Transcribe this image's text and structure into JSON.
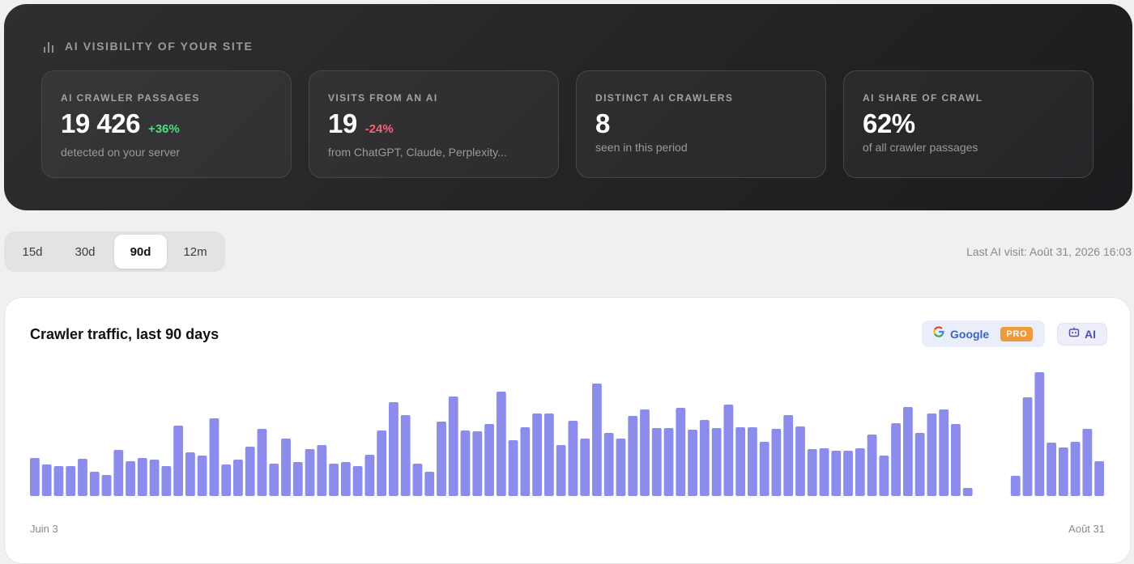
{
  "hero": {
    "title": "AI VISIBILITY OF YOUR SITE",
    "icon": "bar-chart-icon",
    "cards": [
      {
        "label": "AI CRAWLER PASSAGES",
        "value": "19 426",
        "delta": "+36%",
        "delta_dir": "up",
        "sub": "detected on your server"
      },
      {
        "label": "VISITS FROM AN AI",
        "value": "19",
        "delta": "-24%",
        "delta_dir": "down",
        "sub": "from ChatGPT, Claude, Perplexity..."
      },
      {
        "label": "DISTINCT AI CRAWLERS",
        "value": "8",
        "delta": "",
        "sub": "seen in this period"
      },
      {
        "label": "AI SHARE OF CRAWL",
        "value": "62%",
        "delta": "",
        "sub": "of all crawler passages"
      }
    ]
  },
  "range": {
    "tabs": [
      "15d",
      "30d",
      "90d",
      "12m"
    ],
    "active": "90d"
  },
  "last_visit": "Last AI visit: Août 31, 2026 16:03",
  "chart": {
    "title": "Crawler traffic, last 90 days",
    "google_label": "Google",
    "pro_badge": "PRO",
    "ai_label": "AI",
    "bar_color": "#8b8cec"
  },
  "chart_data": {
    "type": "bar",
    "x_start_label": "Juin 3",
    "x_end_label": "Août 31",
    "ylim": [
      0,
      150
    ],
    "values": [
      47,
      39,
      37,
      37,
      46,
      30,
      26,
      57,
      43,
      47,
      45,
      37,
      87,
      54,
      50,
      96,
      39,
      45,
      61,
      83,
      40,
      71,
      42,
      58,
      63,
      40,
      42,
      37,
      51,
      81,
      116,
      100,
      40,
      30,
      92,
      123,
      81,
      80,
      89,
      129,
      69,
      85,
      102,
      102,
      63,
      93,
      71,
      139,
      78,
      71,
      99,
      107,
      84,
      84,
      109,
      82,
      94,
      84,
      113,
      85,
      85,
      67,
      83,
      100,
      86,
      58,
      59,
      56,
      56,
      59,
      76,
      50,
      90,
      110,
      78,
      102,
      107,
      89,
      10,
      0,
      0,
      0,
      25,
      122,
      153,
      66,
      60,
      67,
      83,
      43
    ]
  }
}
